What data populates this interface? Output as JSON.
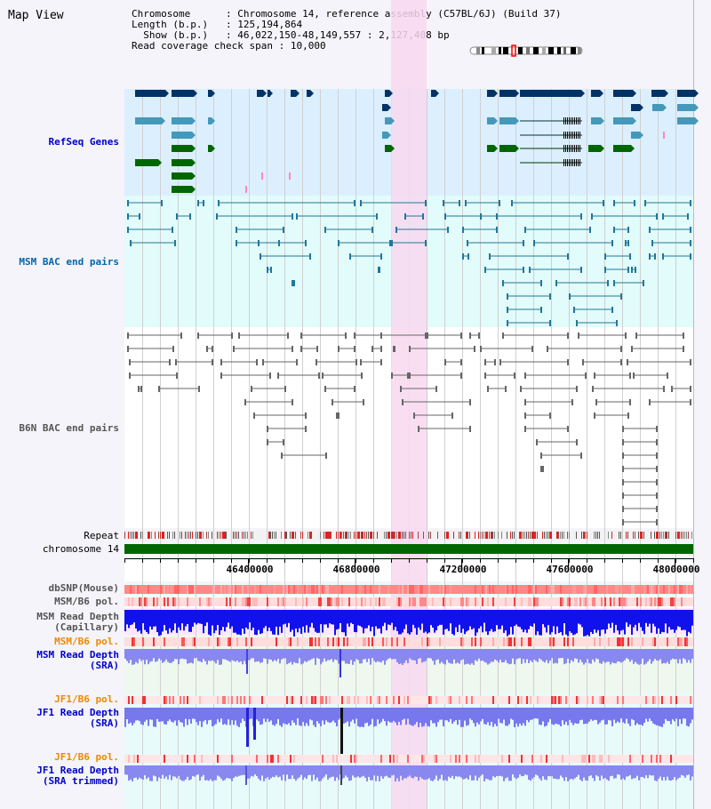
{
  "title": "Map View",
  "header": {
    "line1_key": "Chromosome    ",
    "line1_val": "Chromosome 14, reference assembly (C57BL/6J) (Build 37)",
    "line2_key": "Length (b.p.) ",
    "line2_val": "125,194,864",
    "line3_key": "  Show (b.p.) ",
    "line3_val": "46,022,150-48,149,557 : 2,127,408 bp",
    "line4_key": "Read coverage check span",
    "line4_val": "10,000"
  },
  "tracks": {
    "refseq": "RefSeq Genes",
    "msm_bac": "MSM BAC end pairs",
    "b6n_bac": "B6N BAC end pairs",
    "repeat": "Repeat",
    "chromosome": "chromosome 14",
    "dbsnp": "dbSNP(Mouse)",
    "msm_b6_pol1": "MSM/B6 pol.",
    "msm_read_depth_cap_1": "MSM Read Depth",
    "msm_read_depth_cap_2": "(Capillary)",
    "msm_b6_pol2": "MSM/B6 pol.",
    "msm_read_depth_sra_1": "MSM Read Depth",
    "msm_read_depth_sra_2": "(SRA)",
    "jf1_b6_pol1": "JF1/B6 pol.",
    "jf1_read_depth_sra_1": "JF1 Read Depth",
    "jf1_read_depth_sra_2": "(SRA)",
    "jf1_b6_pol2": "JF1/B6 pol.",
    "jf1_read_depth_trim_1": "JF1 Read Depth",
    "jf1_read_depth_trim_2": "(SRA trimmed)"
  },
  "ruler": {
    "ticks": [
      "46400000",
      "46800000",
      "47200000",
      "47600000",
      "48000000"
    ]
  },
  "colors": {
    "refseq_label": "#0000cc",
    "msm_label": "#0066aa",
    "b6n_label": "#555555",
    "orange_label": "#ee8800",
    "blue_label": "#0000cc",
    "highlight": "#f8d8f0",
    "chromosome_bar": "#006600"
  }
}
